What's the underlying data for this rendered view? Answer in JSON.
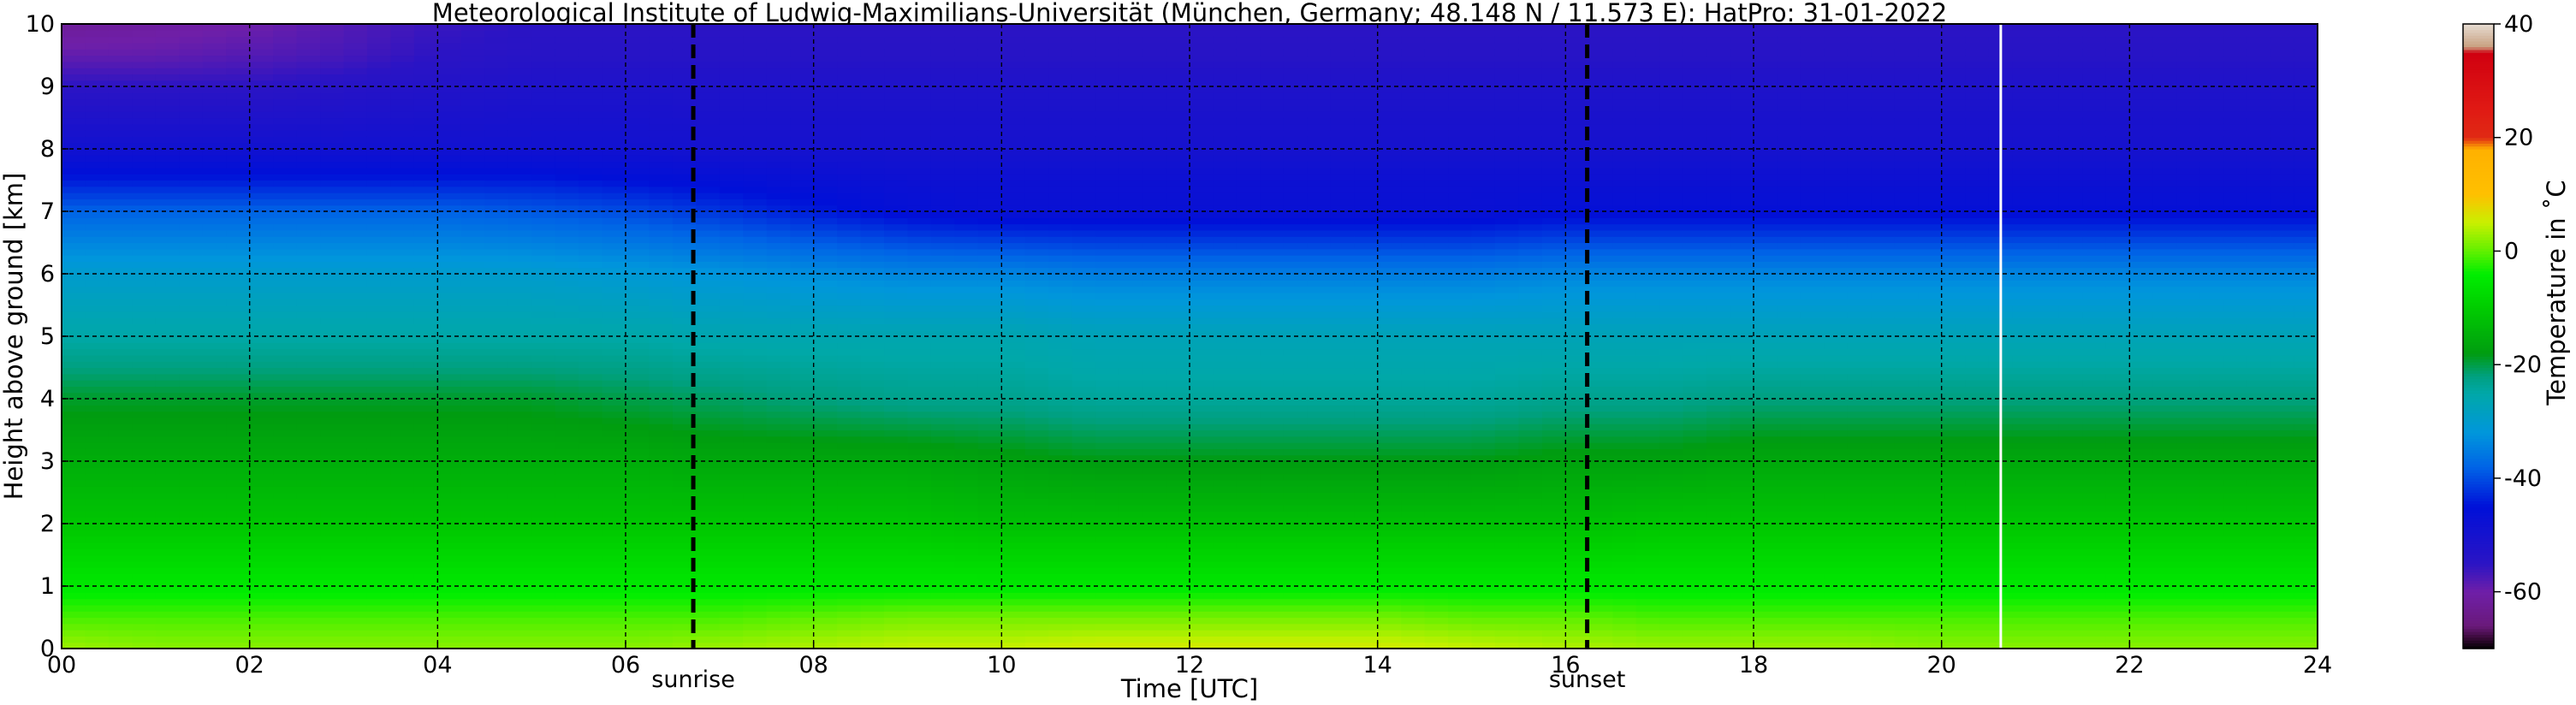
{
  "chart_data": {
    "type": "heatmap",
    "title": "Meteorological Institute of Ludwig-Maximilians-Universität (München, Germany; 48.148 N / 11.573 E):    HatPro: 31-01-2022",
    "xlabel": "Time [UTC]",
    "ylabel": "Height above ground [km]",
    "xlim": [
      0,
      24
    ],
    "ylim": [
      0,
      10
    ],
    "x_ticks": [
      "00",
      "02",
      "04",
      "06",
      "08",
      "10",
      "12",
      "14",
      "16",
      "18",
      "20",
      "22",
      "24"
    ],
    "y_ticks": [
      "0",
      "1",
      "2",
      "3",
      "4",
      "5",
      "6",
      "7",
      "8",
      "9",
      "10"
    ],
    "grid": true,
    "colorbar": {
      "label": "Temperature in ˚C",
      "range": [
        -70,
        40
      ],
      "ticks": [
        "-60",
        "-40",
        "-20",
        "0",
        "20",
        "40"
      ],
      "colors": [
        {
          "t": -70,
          "color": "#000000"
        },
        {
          "t": -68,
          "color": "#3a0a3a"
        },
        {
          "t": -66,
          "color": "#6a1a7a"
        },
        {
          "t": -60,
          "color": "#6f1fa8"
        },
        {
          "t": -55,
          "color": "#2b14c4"
        },
        {
          "t": -45,
          "color": "#0010d8"
        },
        {
          "t": -38,
          "color": "#0064e6"
        },
        {
          "t": -32,
          "color": "#0096dc"
        },
        {
          "t": -25,
          "color": "#00a8a8"
        },
        {
          "t": -22,
          "color": "#00a080"
        },
        {
          "t": -18,
          "color": "#009c10"
        },
        {
          "t": -10,
          "color": "#00cc00"
        },
        {
          "t": -4,
          "color": "#00ee00"
        },
        {
          "t": 0,
          "color": "#60f000"
        },
        {
          "t": 5,
          "color": "#c8f000"
        },
        {
          "t": 10,
          "color": "#ffc000"
        },
        {
          "t": 18,
          "color": "#ffb000"
        },
        {
          "t": 20,
          "color": "#e02a14"
        },
        {
          "t": 25,
          "color": "#e01a14"
        },
        {
          "t": 35,
          "color": "#d00010"
        },
        {
          "t": 36,
          "color": "#c8a080"
        },
        {
          "t": 40,
          "color": "#e6dcd2"
        }
      ]
    },
    "profiles": [
      {
        "height": 0.0,
        "temp": [
          3,
          2,
          2,
          2,
          2,
          2,
          2,
          3,
          4,
          5,
          5,
          6,
          6,
          6,
          6,
          5,
          4,
          3,
          3,
          3,
          2,
          2,
          2,
          2,
          2
        ]
      },
      {
        "height": 0.5,
        "temp": [
          -1,
          -1,
          -1,
          -1,
          -1,
          -1,
          -1,
          -1,
          0,
          1,
          1,
          1,
          1,
          1,
          1,
          0,
          0,
          -1,
          -1,
          -1,
          -1,
          -1,
          -1,
          -1,
          -1
        ]
      },
      {
        "height": 1.0,
        "temp": [
          -5,
          -5,
          -5,
          -5,
          -5,
          -5,
          -5,
          -5,
          -5,
          -5,
          -5,
          -5,
          -5,
          -5,
          -5,
          -5,
          -5,
          -5,
          -5,
          -5,
          -5,
          -5,
          -5,
          -5,
          -5
        ]
      },
      {
        "height": 2.0,
        "temp": [
          -11,
          -11,
          -11,
          -11,
          -11,
          -11,
          -11,
          -11,
          -11,
          -11,
          -12,
          -12,
          -12,
          -12,
          -12,
          -12,
          -12,
          -11,
          -11,
          -11,
          -11,
          -11,
          -11,
          -11,
          -11
        ]
      },
      {
        "height": 3.0,
        "temp": [
          -15,
          -15,
          -15,
          -15,
          -15,
          -15,
          -15,
          -16,
          -16,
          -16,
          -17,
          -18,
          -18,
          -18,
          -18,
          -18,
          -17,
          -17,
          -16,
          -16,
          -16,
          -16,
          -16,
          -16,
          -16
        ]
      },
      {
        "height": 4.0,
        "temp": [
          -19,
          -19,
          -19,
          -19,
          -19,
          -19,
          -20,
          -21,
          -22,
          -23,
          -23,
          -24,
          -24,
          -24,
          -24,
          -24,
          -23,
          -23,
          -22,
          -22,
          -22,
          -22,
          -22,
          -22,
          -22
        ]
      },
      {
        "height": 5.0,
        "temp": [
          -25,
          -25,
          -25,
          -25,
          -25,
          -25,
          -25,
          -26,
          -26,
          -26,
          -26,
          -27,
          -27,
          -27,
          -27,
          -27,
          -27,
          -27,
          -27,
          -27,
          -27,
          -27,
          -27,
          -27,
          -27
        ]
      },
      {
        "height": 6.0,
        "temp": [
          -30,
          -30,
          -30,
          -30,
          -30,
          -30,
          -31,
          -32,
          -33,
          -34,
          -34,
          -35,
          -35,
          -35,
          -35,
          -35,
          -34,
          -34,
          -34,
          -34,
          -34,
          -34,
          -34,
          -34,
          -34
        ]
      },
      {
        "height": 7.0,
        "temp": [
          -38,
          -38,
          -38,
          -38,
          -38,
          -39,
          -40,
          -42,
          -44,
          -46,
          -47,
          -47,
          -47,
          -47,
          -47,
          -47,
          -46,
          -46,
          -46,
          -46,
          -46,
          -46,
          -46,
          -46,
          -46
        ]
      },
      {
        "height": 7.5,
        "temp": [
          -44,
          -44,
          -44,
          -44,
          -44,
          -44,
          -45,
          -46,
          -47,
          -48,
          -48,
          -48,
          -48,
          -48,
          -48,
          -48,
          -48,
          -48,
          -48,
          -48,
          -48,
          -48,
          -48,
          -48,
          -48
        ]
      },
      {
        "height": 8.0,
        "temp": [
          -49,
          -49,
          -49,
          -49,
          -49,
          -49,
          -49,
          -50,
          -50,
          -50,
          -50,
          -50,
          -50,
          -50,
          -50,
          -50,
          -50,
          -50,
          -50,
          -50,
          -50,
          -50,
          -50,
          -50,
          -50
        ]
      },
      {
        "height": 9.0,
        "temp": [
          -55,
          -55,
          -55,
          -54,
          -53,
          -52,
          -52,
          -52,
          -52,
          -52,
          -52,
          -52,
          -52,
          -52,
          -52,
          -52,
          -52,
          -52,
          -52,
          -52,
          -52,
          -52,
          -52,
          -52,
          -52
        ]
      },
      {
        "height": 9.5,
        "temp": [
          -59,
          -59,
          -58,
          -57,
          -55,
          -54,
          -54,
          -54,
          -54,
          -54,
          -54,
          -54,
          -54,
          -54,
          -54,
          -54,
          -54,
          -54,
          -54,
          -54,
          -54,
          -54,
          -54,
          -54,
          -54
        ]
      },
      {
        "height": 10.0,
        "temp": [
          -62,
          -61,
          -60,
          -58,
          -56,
          -55,
          -55,
          -55,
          -55,
          -55,
          -55,
          -55,
          -55,
          -55,
          -55,
          -55,
          -55,
          -55,
          -55,
          -55,
          -55,
          -55,
          -55,
          -55,
          -55
        ]
      }
    ],
    "annotations": [
      {
        "x": 6.72,
        "label": "sunrise",
        "style": "dashed"
      },
      {
        "x": 16.23,
        "label": "sunset",
        "style": "dashed"
      }
    ],
    "data_gaps": [
      {
        "x": 20.63
      }
    ]
  }
}
